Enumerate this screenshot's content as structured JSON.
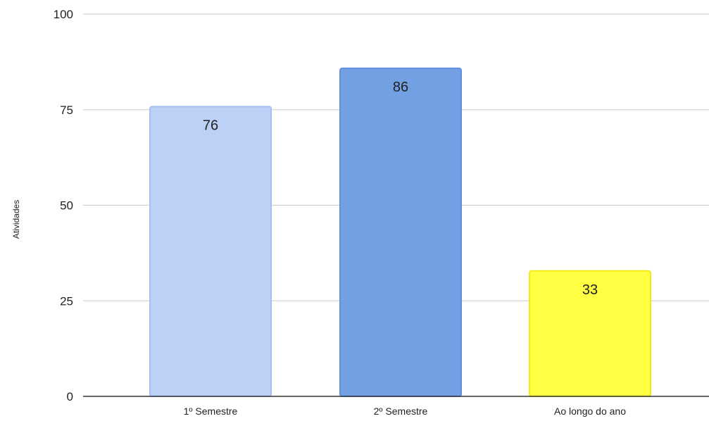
{
  "chart_data": {
    "type": "bar",
    "title": "",
    "xlabel": "",
    "ylabel": "Atividades",
    "ylim": [
      0,
      100
    ],
    "yticks": [
      0,
      25,
      50,
      75,
      100
    ],
    "grid": true,
    "legend": "none",
    "categories": [
      "1º Semestre",
      "2º Semestre",
      "Ao longo do ano"
    ],
    "values": [
      76,
      86,
      33
    ],
    "data_labels": [
      "76",
      "86",
      "33"
    ],
    "colors": {
      "fill": [
        "#bdd1f6",
        "#739fe3",
        "#ffff43"
      ],
      "stroke": [
        "#a6c1f1",
        "#5f8fdd",
        "#f4e815"
      ],
      "gridline": "#cccccc",
      "baseline": "#333333"
    }
  }
}
